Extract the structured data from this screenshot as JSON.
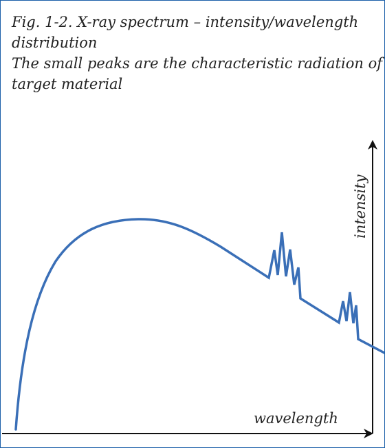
{
  "caption": {
    "line1": "Fig. 1-2.  X-ray spectrum – intensity/wavelength",
    "line2": "distribution",
    "line3": "The small peaks are the characteristic radiation of the",
    "line4": "target material"
  },
  "axes": {
    "x_label": "wavelength",
    "y_label": "intensity"
  },
  "colors": {
    "curve": "#3a6fb7",
    "axis": "#111111",
    "border": "#1a5fa8",
    "text": "#222222"
  }
}
